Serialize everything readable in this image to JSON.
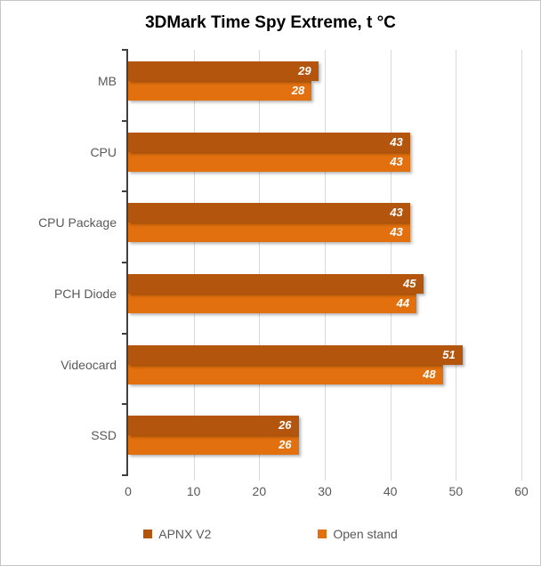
{
  "title": "3DMark Time Spy Extreme, t °C",
  "chart_data": {
    "type": "bar",
    "orientation": "horizontal",
    "title": "3DMark Time Spy Extreme, t °C",
    "categories": [
      "MB",
      "CPU",
      "CPU Package",
      "PCH Diode",
      "Videocard",
      "SSD"
    ],
    "series": [
      {
        "name": "APNX V2",
        "color": "#b4550d",
        "values": [
          29,
          43,
          43,
          45,
          51,
          26
        ]
      },
      {
        "name": "Open stand",
        "color": "#e2700e",
        "values": [
          28,
          43,
          43,
          44,
          48,
          26
        ]
      }
    ],
    "xlabel": "",
    "ylabel": "",
    "xlim": [
      0,
      60
    ],
    "x_ticks": [
      0,
      10,
      20,
      30,
      40,
      50,
      60
    ],
    "grid": "vertical",
    "gridline_color": "#d9d9d9",
    "axis_color": "#404040",
    "label_color": "#595959",
    "value_label_color": "#ffffff",
    "value_labels": "inside-end",
    "legend_position": "bottom"
  }
}
